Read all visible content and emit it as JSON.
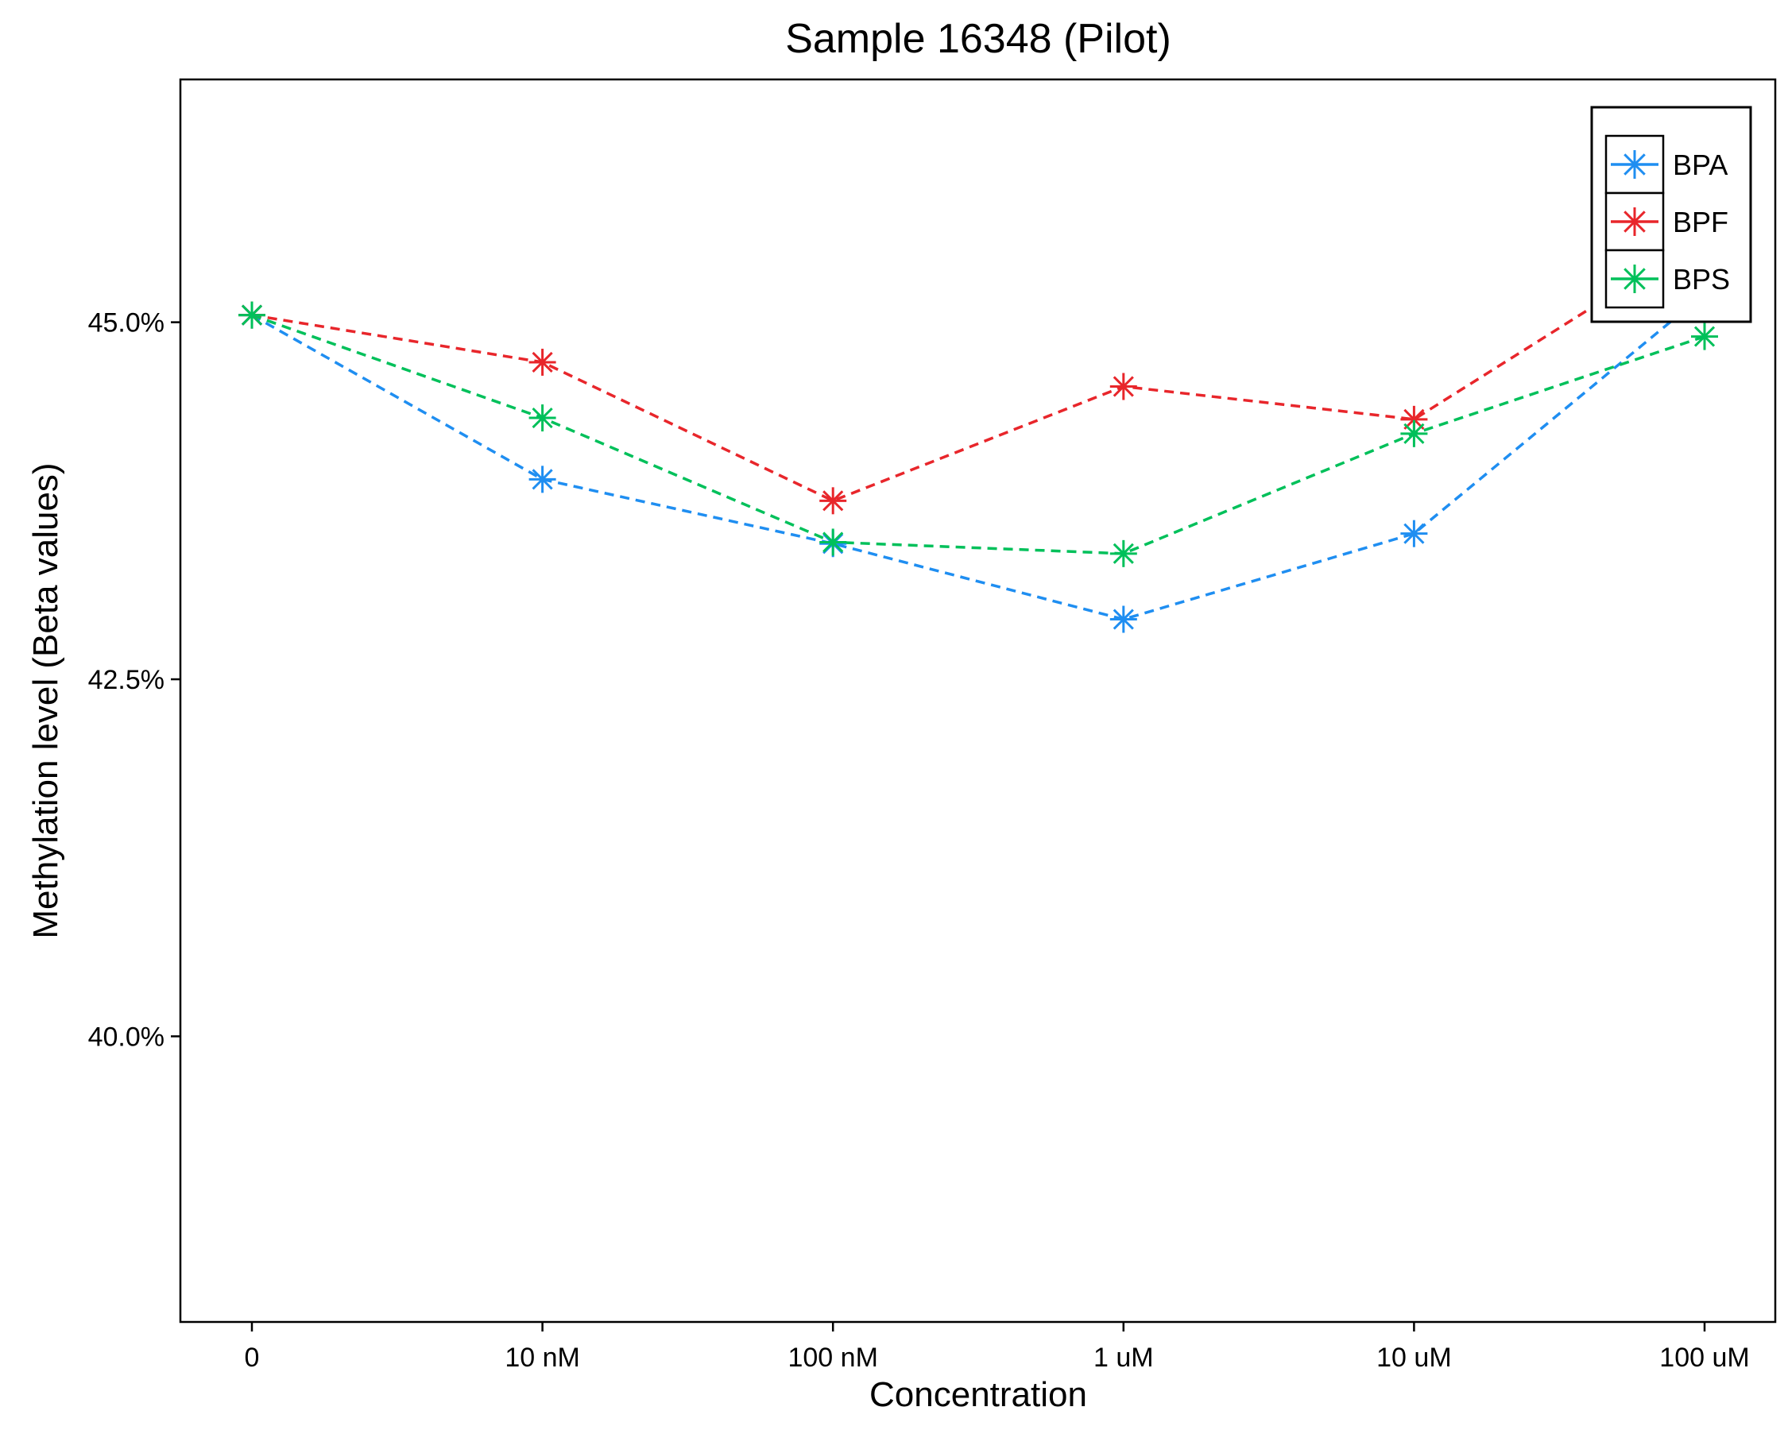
{
  "chart_data": {
    "type": "line",
    "title": "Sample 16348 (Pilot)",
    "xlabel": "Concentration",
    "ylabel": "Methylation level (Beta values)",
    "categories": [
      "0",
      "10 nM",
      "100 nM",
      "1 uM",
      "10 uM",
      "100 uM"
    ],
    "ylim": [
      38.0,
      46.7
    ],
    "yticks": [
      {
        "value": 40.0,
        "label": "40.0%"
      },
      {
        "value": 42.5,
        "label": "42.5%"
      },
      {
        "value": 45.0,
        "label": "45.0%"
      }
    ],
    "grid": false,
    "legend_position": "top-right",
    "marker": "asterisk",
    "line_style": "dashed",
    "series": [
      {
        "name": "BPA",
        "color": "#1f8ef1",
        "values": [
          45.05,
          43.9,
          43.45,
          42.92,
          43.52,
          45.2
        ]
      },
      {
        "name": "BPF",
        "color": "#e8262b",
        "values": [
          45.05,
          44.72,
          43.75,
          44.55,
          44.32,
          45.6
        ]
      },
      {
        "name": "BPS",
        "color": "#00c05a",
        "values": [
          45.05,
          44.33,
          43.46,
          43.38,
          44.22,
          44.9
        ]
      }
    ]
  }
}
